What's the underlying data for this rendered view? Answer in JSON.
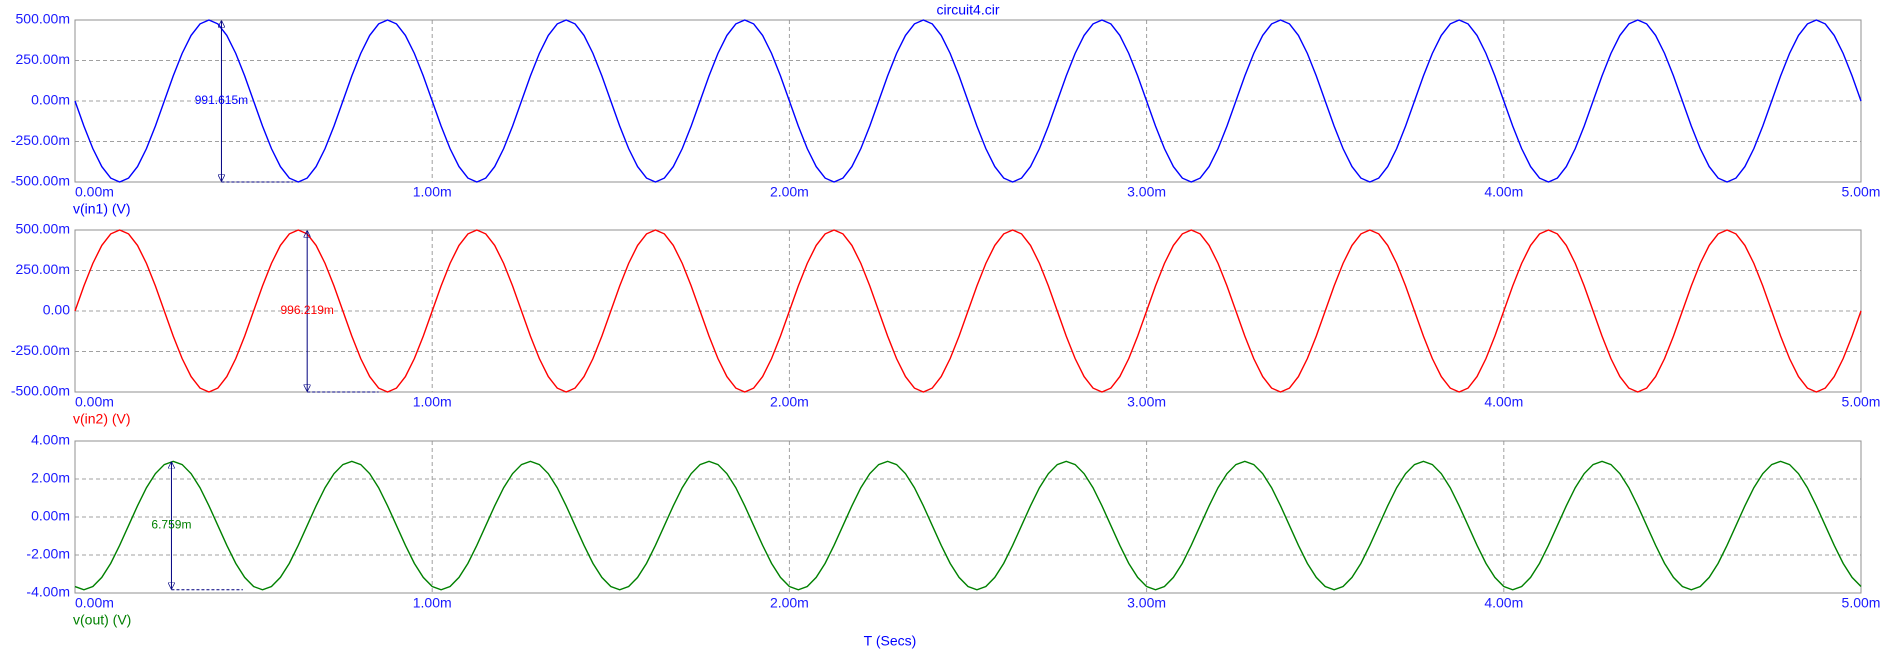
{
  "chart_data": {
    "type": "line",
    "title": "circuit4.cir",
    "x_label": "T (Secs)",
    "x": [
      0,
      2.5e-05,
      5e-05,
      7.5e-05,
      0.0001,
      0.000125,
      0.00015,
      0.000175,
      0.0002,
      0.000225,
      0.00025,
      0.000275,
      0.0003,
      0.000325,
      0.00035,
      0.000375,
      0.0004,
      0.000425,
      0.00045,
      0.000475,
      0.0005,
      0.000525,
      0.00055,
      0.000575,
      0.0006,
      0.000625,
      0.00065,
      0.000675,
      0.0007,
      0.000725,
      0.00075,
      0.000775,
      0.0008,
      0.000825,
      0.00085,
      0.000875,
      0.0009,
      0.000925,
      0.00095,
      0.000975,
      0.001,
      0.001025,
      0.00105,
      0.001075,
      0.0011,
      0.001125,
      0.00115,
      0.001175,
      0.0012,
      0.001225,
      0.00125,
      0.001275,
      0.0013,
      0.001325,
      0.00135,
      0.001375,
      0.0014,
      0.001425,
      0.00145,
      0.001475,
      0.0015,
      0.001525,
      0.00155,
      0.001575,
      0.0016,
      0.001625,
      0.00165,
      0.001675,
      0.0017,
      0.001725,
      0.00175,
      0.001775,
      0.0018,
      0.001825,
      0.00185,
      0.001875,
      0.0019,
      0.001925,
      0.00195,
      0.001975,
      0.002,
      0.002025,
      0.00205,
      0.002075,
      0.0021,
      0.002125,
      0.00215,
      0.002175,
      0.0022,
      0.002225,
      0.00225,
      0.002275,
      0.0023,
      0.002325,
      0.00235,
      0.002375,
      0.0024,
      0.002425,
      0.00245,
      0.002475,
      0.0025,
      0.002525,
      0.00255,
      0.002575,
      0.0026,
      0.002625,
      0.00265,
      0.002675,
      0.0027,
      0.002725,
      0.00275,
      0.002775,
      0.0028,
      0.002825,
      0.00285,
      0.002875,
      0.0029,
      0.002925,
      0.00295,
      0.002975,
      0.003,
      0.003025,
      0.00305,
      0.003075,
      0.0031,
      0.003125,
      0.00315,
      0.003175,
      0.0032,
      0.003225,
      0.00325,
      0.003275,
      0.0033,
      0.003325,
      0.00335,
      0.003375,
      0.0034,
      0.003425,
      0.00345,
      0.003475,
      0.0035,
      0.003525,
      0.00355,
      0.003575,
      0.0036,
      0.003625,
      0.00365,
      0.003675,
      0.0037,
      0.003725,
      0.00375,
      0.003775,
      0.0038,
      0.003825,
      0.00385,
      0.003875,
      0.0039,
      0.003925,
      0.00395,
      0.003975,
      0.004,
      0.004025,
      0.00405,
      0.004075,
      0.0041,
      0.004125,
      0.00415,
      0.004175,
      0.0042,
      0.004225,
      0.00425,
      0.004275,
      0.0043,
      0.004325,
      0.00435,
      0.004375,
      0.0044,
      0.004425,
      0.00445,
      0.004475,
      0.0045,
      0.004525,
      0.00455,
      0.004575,
      0.0046,
      0.004625,
      0.00465,
      0.004675,
      0.0047,
      0.004725,
      0.00475,
      0.004775,
      0.0048,
      0.004825,
      0.00485,
      0.004875,
      0.0049,
      0.004925,
      0.00495,
      0.004975,
      0.005
    ],
    "xlim": [
      0,
      0.005
    ],
    "xticks": [
      {
        "value": 0,
        "label": "0.00m"
      },
      {
        "value": 0.001,
        "label": "1.00m"
      },
      {
        "value": 0.002,
        "label": "2.00m"
      },
      {
        "value": 0.003,
        "label": "3.00m"
      },
      {
        "value": 0.004,
        "label": "4.00m"
      },
      {
        "value": 0.005,
        "label": "5.00m"
      }
    ],
    "grid": true,
    "series": [
      {
        "name": "v(in1) (V)",
        "color": "#0000ff",
        "cursor_label": "991.615m",
        "ylim": [
          -0.5,
          0.5
        ],
        "yticks": [
          {
            "value": -0.5,
            "label": "-500.00m"
          },
          {
            "value": -0.25,
            "label": "-250.00m"
          },
          {
            "value": 0,
            "label": "0.00m"
          },
          {
            "value": 0.25,
            "label": "250.00m"
          },
          {
            "value": 0.5,
            "label": "500.00m"
          }
        ],
        "values": [
          0,
          -0.155,
          -0.294,
          -0.405,
          -0.476,
          -0.5,
          -0.476,
          -0.405,
          -0.294,
          -0.155,
          0,
          0.155,
          0.294,
          0.405,
          0.476,
          0.5,
          0.476,
          0.405,
          0.294,
          0.155,
          0,
          -0.155,
          -0.294,
          -0.405,
          -0.476,
          -0.5,
          -0.476,
          -0.405,
          -0.294,
          -0.155,
          0,
          0.155,
          0.294,
          0.405,
          0.476,
          0.5,
          0.476,
          0.405,
          0.294,
          0.155,
          0,
          -0.155,
          -0.294,
          -0.405,
          -0.476,
          -0.5,
          -0.476,
          -0.405,
          -0.294,
          -0.155,
          0,
          0.155,
          0.294,
          0.405,
          0.476,
          0.5,
          0.476,
          0.405,
          0.294,
          0.155,
          0,
          -0.155,
          -0.294,
          -0.405,
          -0.476,
          -0.5,
          -0.476,
          -0.405,
          -0.294,
          -0.155,
          0,
          0.155,
          0.294,
          0.405,
          0.476,
          0.5,
          0.476,
          0.405,
          0.294,
          0.155,
          0,
          -0.155,
          -0.294,
          -0.405,
          -0.476,
          -0.5,
          -0.476,
          -0.405,
          -0.294,
          -0.155,
          0,
          0.155,
          0.294,
          0.405,
          0.476,
          0.5,
          0.476,
          0.405,
          0.294,
          0.155,
          0,
          -0.155,
          -0.294,
          -0.405,
          -0.476,
          -0.5,
          -0.476,
          -0.405,
          -0.294,
          -0.155,
          0,
          0.155,
          0.294,
          0.405,
          0.476,
          0.5,
          0.476,
          0.405,
          0.294,
          0.155,
          0,
          -0.155,
          -0.294,
          -0.405,
          -0.476,
          -0.5,
          -0.476,
          -0.405,
          -0.294,
          -0.155,
          0,
          0.155,
          0.294,
          0.405,
          0.476,
          0.5,
          0.476,
          0.405,
          0.294,
          0.155,
          0,
          -0.155,
          -0.294,
          -0.405,
          -0.476,
          -0.5,
          -0.476,
          -0.405,
          -0.294,
          -0.155,
          0,
          0.155,
          0.294,
          0.405,
          0.476,
          0.5,
          0.476,
          0.405,
          0.294,
          0.155,
          0,
          -0.155,
          -0.294,
          -0.405,
          -0.476,
          -0.5,
          -0.476,
          -0.405,
          -0.294,
          -0.155,
          0,
          0.155,
          0.294,
          0.405,
          0.476,
          0.5,
          0.476,
          0.405,
          0.294,
          0.155,
          0,
          -0.155,
          -0.294,
          -0.405,
          -0.476,
          -0.5,
          -0.476,
          -0.405,
          -0.294,
          -0.155,
          0,
          0.155,
          0.294,
          0.405,
          0.476,
          0.5,
          0.476,
          0.405,
          0.294,
          0.155,
          0
        ]
      },
      {
        "name": "v(in2) (V)",
        "color": "#ff0000",
        "cursor_label": "996.219m",
        "ylim": [
          -0.5,
          0.5
        ],
        "yticks": [
          {
            "value": -0.5,
            "label": "-500.00m"
          },
          {
            "value": -0.25,
            "label": "-250.00m"
          },
          {
            "value": 0,
            "label": "0.00"
          },
          {
            "value": 0.25,
            "label": "250.00m"
          },
          {
            "value": 0.5,
            "label": "500.00m"
          }
        ],
        "values": [
          0,
          0.155,
          0.294,
          0.405,
          0.476,
          0.5,
          0.476,
          0.405,
          0.294,
          0.155,
          0,
          -0.155,
          -0.294,
          -0.405,
          -0.476,
          -0.5,
          -0.476,
          -0.405,
          -0.294,
          -0.155,
          0,
          0.155,
          0.294,
          0.405,
          0.476,
          0.5,
          0.476,
          0.405,
          0.294,
          0.155,
          0,
          -0.155,
          -0.294,
          -0.405,
          -0.476,
          -0.5,
          -0.476,
          -0.405,
          -0.294,
          -0.155,
          0,
          0.155,
          0.294,
          0.405,
          0.476,
          0.5,
          0.476,
          0.405,
          0.294,
          0.155,
          0,
          -0.155,
          -0.294,
          -0.405,
          -0.476,
          -0.5,
          -0.476,
          -0.405,
          -0.294,
          -0.155,
          0,
          0.155,
          0.294,
          0.405,
          0.476,
          0.5,
          0.476,
          0.405,
          0.294,
          0.155,
          0,
          -0.155,
          -0.294,
          -0.405,
          -0.476,
          -0.5,
          -0.476,
          -0.405,
          -0.294,
          -0.155,
          0,
          0.155,
          0.294,
          0.405,
          0.476,
          0.5,
          0.476,
          0.405,
          0.294,
          0.155,
          0,
          -0.155,
          -0.294,
          -0.405,
          -0.476,
          -0.5,
          -0.476,
          -0.405,
          -0.294,
          -0.155,
          0,
          0.155,
          0.294,
          0.405,
          0.476,
          0.5,
          0.476,
          0.405,
          0.294,
          0.155,
          0,
          -0.155,
          -0.294,
          -0.405,
          -0.476,
          -0.5,
          -0.476,
          -0.405,
          -0.294,
          -0.155,
          0,
          0.155,
          0.294,
          0.405,
          0.476,
          0.5,
          0.476,
          0.405,
          0.294,
          0.155,
          0,
          -0.155,
          -0.294,
          -0.405,
          -0.476,
          -0.5,
          -0.476,
          -0.405,
          -0.294,
          -0.155,
          0,
          0.155,
          0.294,
          0.405,
          0.476,
          0.5,
          0.476,
          0.405,
          0.294,
          0.155,
          0,
          -0.155,
          -0.294,
          -0.405,
          -0.476,
          -0.5,
          -0.476,
          -0.405,
          -0.294,
          -0.155,
          0,
          0.155,
          0.294,
          0.405,
          0.476,
          0.5,
          0.476,
          0.405,
          0.294,
          0.155,
          0,
          -0.155,
          -0.294,
          -0.405,
          -0.476,
          -0.5,
          -0.476,
          -0.405,
          -0.294,
          -0.155,
          0,
          0.155,
          0.294,
          0.405,
          0.476,
          0.5,
          0.476,
          0.405,
          0.294,
          0.155,
          0,
          -0.155,
          -0.294,
          -0.405,
          -0.476,
          -0.5,
          -0.476,
          -0.405,
          -0.294,
          -0.155,
          0
        ]
      },
      {
        "name": "v(out) (V)",
        "color": "#008000",
        "cursor_label": "6.759m",
        "ylim": [
          -0.004,
          0.004
        ],
        "yticks": [
          {
            "value": -0.004,
            "label": "-4.00m"
          },
          {
            "value": -0.002,
            "label": "-2.00m"
          },
          {
            "value": 0,
            "label": "0.00m"
          },
          {
            "value": 0.002,
            "label": "2.00m"
          },
          {
            "value": 0.004,
            "label": "4.00m"
          }
        ],
        "values": [
          -0.00366,
          -0.00383,
          -0.00366,
          -0.00318,
          -0.00244,
          -0.00149,
          -0.00045,
          0.00059,
          0.00154,
          0.00228,
          0.00276,
          0.00293,
          0.00276,
          0.00228,
          0.00154,
          0.00059,
          -0.00045,
          -0.00149,
          -0.00244,
          -0.00318,
          -0.00366,
          -0.00383,
          -0.00366,
          -0.00318,
          -0.00244,
          -0.00149,
          -0.00045,
          0.00059,
          0.00154,
          0.00228,
          0.00276,
          0.00293,
          0.00276,
          0.00228,
          0.00154,
          0.00059,
          -0.00045,
          -0.00149,
          -0.00244,
          -0.00318,
          -0.00366,
          -0.00383,
          -0.00366,
          -0.00318,
          -0.00244,
          -0.00149,
          -0.00045,
          0.00059,
          0.00154,
          0.00228,
          0.00276,
          0.00293,
          0.00276,
          0.00228,
          0.00154,
          0.00059,
          -0.00045,
          -0.00149,
          -0.00244,
          -0.00318,
          -0.00366,
          -0.00383,
          -0.00366,
          -0.00318,
          -0.00244,
          -0.00149,
          -0.00045,
          0.00059,
          0.00154,
          0.00228,
          0.00276,
          0.00293,
          0.00276,
          0.00228,
          0.00154,
          0.00059,
          -0.00045,
          -0.00149,
          -0.00244,
          -0.00318,
          -0.00366,
          -0.00383,
          -0.00366,
          -0.00318,
          -0.00244,
          -0.00149,
          -0.00045,
          0.00059,
          0.00154,
          0.00228,
          0.00276,
          0.00293,
          0.00276,
          0.00228,
          0.00154,
          0.00059,
          -0.00045,
          -0.00149,
          -0.00244,
          -0.00318,
          -0.00366,
          -0.00383,
          -0.00366,
          -0.00318,
          -0.00244,
          -0.00149,
          -0.00045,
          0.00059,
          0.00154,
          0.00228,
          0.00276,
          0.00293,
          0.00276,
          0.00228,
          0.00154,
          0.00059,
          -0.00045,
          -0.00149,
          -0.00244,
          -0.00318,
          -0.00366,
          -0.00383,
          -0.00366,
          -0.00318,
          -0.00244,
          -0.00149,
          -0.00045,
          0.00059,
          0.00154,
          0.00228,
          0.00276,
          0.00293,
          0.00276,
          0.00228,
          0.00154,
          0.00059,
          -0.00045,
          -0.00149,
          -0.00244,
          -0.00318,
          -0.00366,
          -0.00383,
          -0.00366,
          -0.00318,
          -0.00244,
          -0.00149,
          -0.00045,
          0.00059,
          0.00154,
          0.00228,
          0.00276,
          0.00293,
          0.00276,
          0.00228,
          0.00154,
          0.00059,
          -0.00045,
          -0.00149,
          -0.00244,
          -0.00318,
          -0.00366,
          -0.00383,
          -0.00366,
          -0.00318,
          -0.00244,
          -0.00149,
          -0.00045,
          0.00059,
          0.00154,
          0.00228,
          0.00276,
          0.00293,
          0.00276,
          0.00228,
          0.00154,
          0.00059,
          -0.00045,
          -0.00149,
          -0.00244,
          -0.00318,
          -0.00366,
          -0.00383,
          -0.00366,
          -0.00318,
          -0.00244,
          -0.00149,
          -0.00045,
          0.00059,
          0.00154,
          0.00228,
          0.00276,
          0.00293,
          0.00276,
          0.00228,
          0.00154,
          0.00059,
          -0.00045,
          -0.00149,
          -0.00244,
          -0.00318,
          -0.00366
        ]
      }
    ]
  }
}
